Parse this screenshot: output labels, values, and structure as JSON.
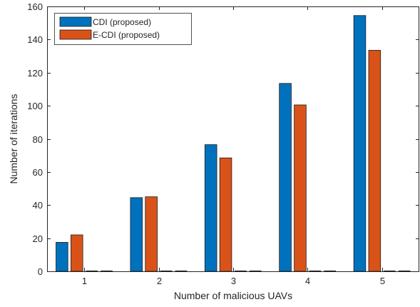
{
  "chart_data": {
    "type": "bar",
    "categories": [
      "1",
      "2",
      "3",
      "4",
      "5"
    ],
    "series": [
      {
        "name": "CDI (proposed)",
        "values": [
          17.5,
          44.5,
          76.5,
          113.5,
          154.5
        ],
        "color": "#0072BD"
      },
      {
        "name": "E-CDI  (proposed)",
        "values": [
          22,
          45,
          68.5,
          100.5,
          133.5
        ],
        "color": "#D95319"
      }
    ],
    "xlabel": "Number of malicious UAVs",
    "ylabel": "Number of iterations",
    "ylim": [
      0,
      160
    ],
    "yticks": [
      0,
      20,
      40,
      60,
      80,
      100,
      120,
      140,
      160
    ],
    "grid": false,
    "legend_position": "top-left"
  }
}
